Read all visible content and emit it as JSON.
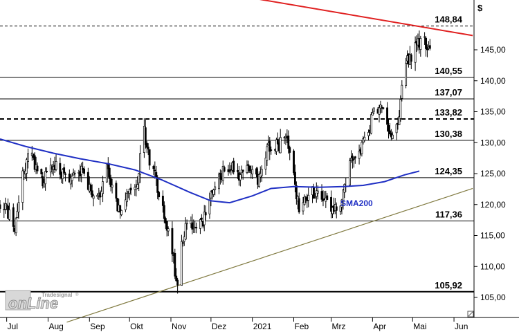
{
  "chart_data": {
    "type": "candlestick",
    "currency_label": "$",
    "y_ticks": [
      105,
      110,
      115,
      120,
      125,
      130,
      135,
      140,
      145
    ],
    "y_tick_labels": [
      "105,00",
      "110,00",
      "115,00",
      "120,00",
      "125,00",
      "130,00",
      "135,00",
      "140,00",
      "145,00"
    ],
    "x_months": [
      "Jul",
      "Aug",
      "Sep",
      "Okt",
      "Nov",
      "Dez",
      "2021",
      "Feb",
      "Mrz",
      "Apr",
      "Mai",
      "Jun"
    ],
    "horizontal_levels": [
      {
        "label": "148,84",
        "value": 148.84,
        "style": "dashed-thin"
      },
      {
        "label": "140,55",
        "value": 140.55,
        "style": "solid"
      },
      {
        "label": "137,07",
        "value": 137.07,
        "style": "solid"
      },
      {
        "label": "133,82",
        "value": 133.82,
        "style": "dashed-bold"
      },
      {
        "label": "130,38",
        "value": 130.38,
        "style": "solid"
      },
      {
        "label": "124,35",
        "value": 124.35,
        "style": "solid"
      },
      {
        "label": "117,36",
        "value": 117.36,
        "style": "solid"
      },
      {
        "label": "105,92",
        "value": 105.92,
        "style": "solid-bold"
      }
    ],
    "resistance_line": {
      "color": "#e02020",
      "from": {
        "x": "2020-09-10",
        "y": 157.5
      },
      "to": {
        "x": "2021-06-15",
        "y": 147.3
      }
    },
    "support_line": {
      "color": "#807a40",
      "from": {
        "x": "2020-08-15",
        "y": 101.0
      },
      "to": {
        "x": "2021-06-15",
        "y": 122.6
      }
    },
    "sma": {
      "label": "SMA200",
      "color": "#1f2fc4",
      "points": [
        [
          "2020-06-26",
          130.6
        ],
        [
          "2020-07-15",
          129.4
        ],
        [
          "2020-08-05",
          128.3
        ],
        [
          "2020-08-25",
          127.4
        ],
        [
          "2020-09-15",
          126.6
        ],
        [
          "2020-10-05",
          125.6
        ],
        [
          "2020-10-25",
          124.0
        ],
        [
          "2020-11-15",
          122.0
        ],
        [
          "2020-12-01",
          120.6
        ],
        [
          "2020-12-15",
          120.3
        ],
        [
          "2021-01-01",
          121.4
        ],
        [
          "2021-01-15",
          122.6
        ],
        [
          "2021-02-01",
          122.9
        ],
        [
          "2021-02-20",
          122.8
        ],
        [
          "2021-03-10",
          122.9
        ],
        [
          "2021-03-25",
          123.1
        ],
        [
          "2021-04-10",
          123.7
        ],
        [
          "2021-04-25",
          124.8
        ],
        [
          "2021-05-06",
          125.4
        ]
      ]
    },
    "price_path": [
      [
        "2020-06-26",
        120.2
      ],
      [
        "2020-07-03",
        118.5
      ],
      [
        "2020-07-07",
        116.5
      ],
      [
        "2020-07-12",
        124.0
      ],
      [
        "2020-07-18",
        129.0
      ],
      [
        "2020-07-23",
        125.5
      ],
      [
        "2020-07-28",
        123.5
      ],
      [
        "2020-08-04",
        126.5
      ],
      [
        "2020-08-10",
        125.5
      ],
      [
        "2020-08-17",
        124.0
      ],
      [
        "2020-08-24",
        126.0
      ],
      [
        "2020-08-31",
        123.0
      ],
      [
        "2020-09-07",
        121.0
      ],
      [
        "2020-09-14",
        125.5
      ],
      [
        "2020-09-21",
        120.0
      ],
      [
        "2020-09-25",
        118.0
      ],
      [
        "2020-10-01",
        123.0
      ],
      [
        "2020-10-07",
        124.0
      ],
      [
        "2020-10-12",
        132.0
      ],
      [
        "2020-10-15",
        128.0
      ],
      [
        "2020-10-20",
        124.5
      ],
      [
        "2020-10-26",
        119.0
      ],
      [
        "2020-11-02",
        112.0
      ],
      [
        "2020-11-06",
        107.0
      ],
      [
        "2020-11-09",
        114.0
      ],
      [
        "2020-11-13",
        117.0
      ],
      [
        "2020-11-20",
        116.5
      ],
      [
        "2020-11-27",
        118.0
      ],
      [
        "2020-12-02",
        122.0
      ],
      [
        "2020-12-09",
        125.0
      ],
      [
        "2020-12-16",
        126.0
      ],
      [
        "2020-12-23",
        124.5
      ],
      [
        "2020-12-30",
        126.5
      ],
      [
        "2021-01-06",
        124.0
      ],
      [
        "2021-01-13",
        129.0
      ],
      [
        "2021-01-20",
        129.5
      ],
      [
        "2021-01-27",
        131.0
      ],
      [
        "2021-02-02",
        123.0
      ],
      [
        "2021-02-05",
        119.0
      ],
      [
        "2021-02-12",
        122.0
      ],
      [
        "2021-02-19",
        122.0
      ],
      [
        "2021-02-26",
        120.0
      ],
      [
        "2021-03-05",
        119.0
      ],
      [
        "2021-03-10",
        122.0
      ],
      [
        "2021-03-15",
        126.0
      ],
      [
        "2021-03-22",
        129.0
      ],
      [
        "2021-03-29",
        131.0
      ],
      [
        "2021-04-01",
        135.0
      ],
      [
        "2021-04-06",
        135.5
      ],
      [
        "2021-04-12",
        133.5
      ],
      [
        "2021-04-16",
        131.0
      ],
      [
        "2021-04-20",
        133.0
      ],
      [
        "2021-04-23",
        139.0
      ],
      [
        "2021-04-26",
        143.0
      ],
      [
        "2021-05-01",
        143.5
      ],
      [
        "2021-05-04",
        146.0
      ],
      [
        "2021-05-07",
        146.5
      ],
      [
        "2021-05-11",
        146.0
      ],
      [
        "2021-05-14",
        144.5
      ]
    ]
  },
  "watermark": {
    "brand": "Tradesignal",
    "reg": "®",
    "text": "onLine"
  }
}
